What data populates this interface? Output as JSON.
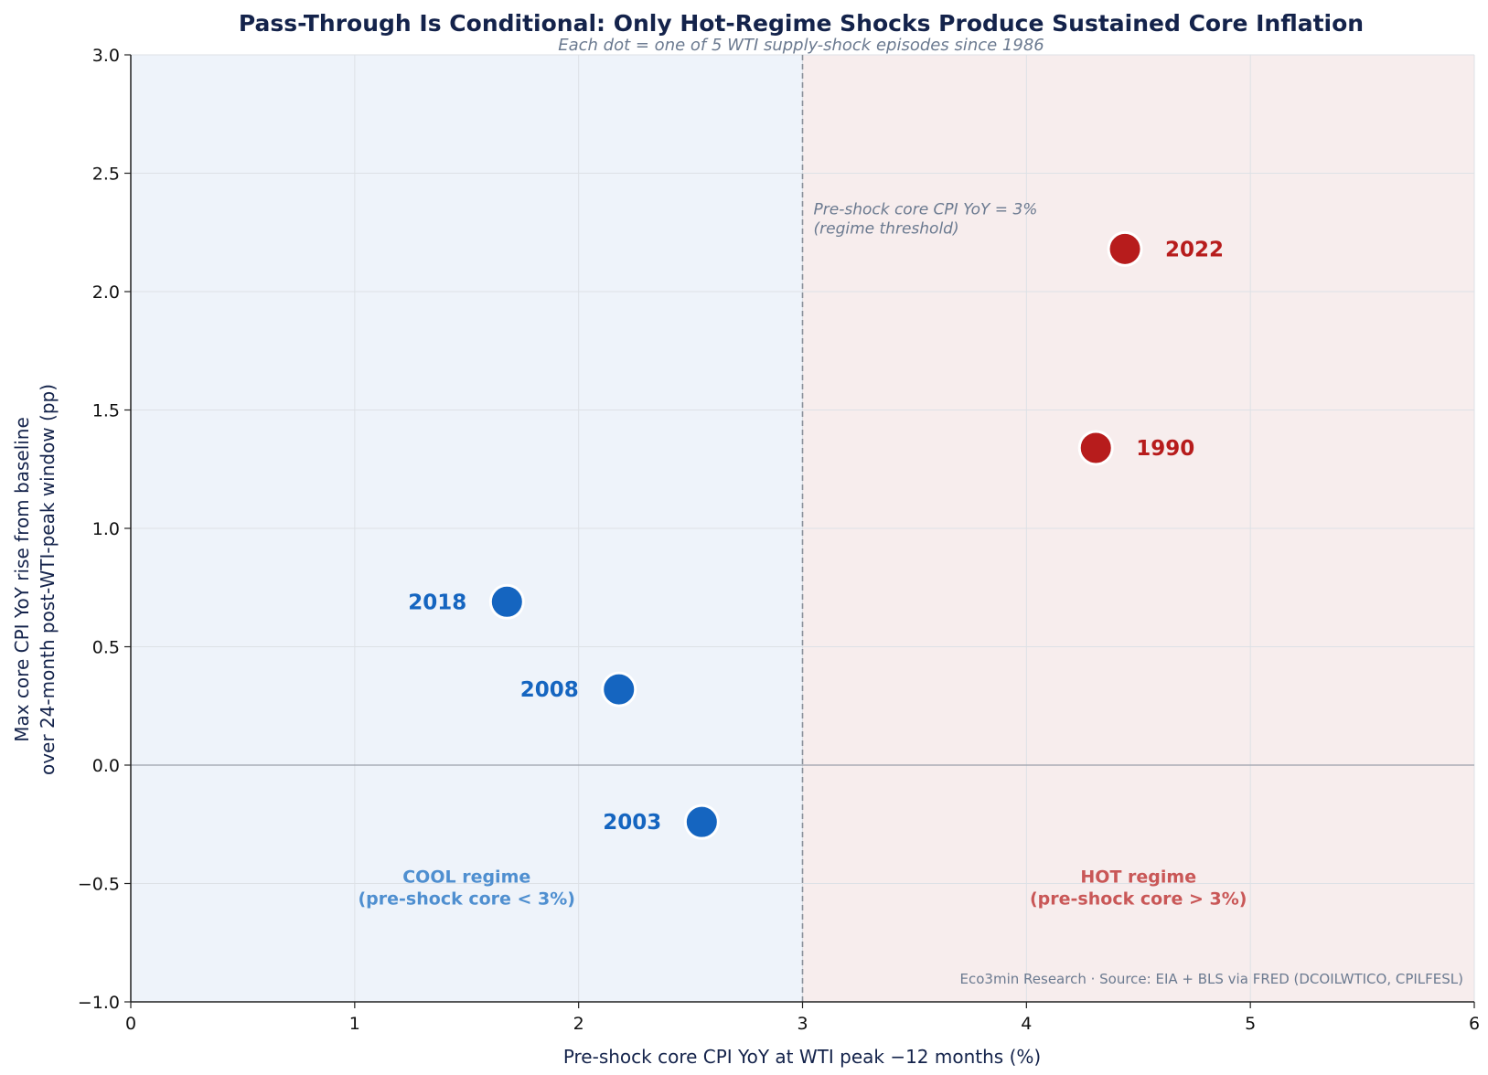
{
  "chart_data": {
    "type": "scatter",
    "title": "Pass-Through Is Conditional: Only Hot-Regime Shocks Produce Sustained Core Inflation",
    "subtitle": "Each dot = one of 5 WTI supply-shock episodes since 1986",
    "xlabel": "Pre-shock core CPI YoY at WTI peak −12 months (%)",
    "ylabel_line1": "Max core CPI YoY rise from baseline",
    "ylabel_line2": "over 24-month post-WTI-peak window (pp)",
    "xlim": [
      0,
      6
    ],
    "ylim": [
      -1.0,
      3.0
    ],
    "xticks": [
      0,
      1,
      2,
      3,
      4,
      5,
      6
    ],
    "xtick_labels": [
      "0",
      "1",
      "2",
      "3",
      "4",
      "5",
      "6"
    ],
    "yticks": [
      -1.0,
      -0.5,
      0.0,
      0.5,
      1.0,
      1.5,
      2.0,
      2.5,
      3.0
    ],
    "ytick_labels": [
      "−1.0",
      "−0.5",
      "0.0",
      "0.5",
      "1.0",
      "1.5",
      "2.0",
      "2.5",
      "3.0"
    ],
    "grid": true,
    "threshold": {
      "x": 3,
      "note_line1": "Pre-shock core CPI YoY = 3%",
      "note_line2": "(regime threshold)"
    },
    "points": [
      {
        "label": "2018",
        "x": 1.68,
        "y": 0.69,
        "regime": "cool"
      },
      {
        "label": "2008",
        "x": 2.18,
        "y": 0.32,
        "regime": "cool"
      },
      {
        "label": "2003",
        "x": 2.55,
        "y": -0.24,
        "regime": "cool"
      },
      {
        "label": "1990",
        "x": 4.31,
        "y": 1.34,
        "regime": "hot"
      },
      {
        "label": "2022",
        "x": 4.44,
        "y": 2.18,
        "regime": "hot"
      }
    ],
    "regimes": {
      "cool": {
        "line1": "COOL regime",
        "line2": "(pre-shock core < 3%)",
        "label_color": "#4f8fd0",
        "point_color": "#1565c0",
        "band_color": "#eef3fa"
      },
      "hot": {
        "line1": "HOT regime",
        "line2": "(pre-shock core > 3%)",
        "label_color": "#c95757",
        "point_color": "#b71c1c",
        "band_color": "#f7eded"
      }
    },
    "source": "Eco3min Research · Source: EIA + BLS via FRED (DCOILWTICO, CPILFESL)"
  }
}
